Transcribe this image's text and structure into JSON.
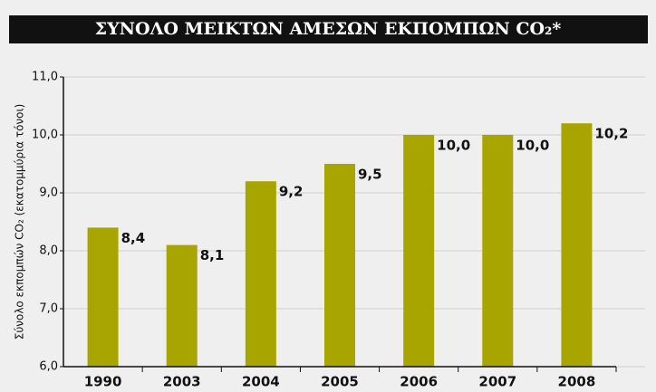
{
  "chart_data": {
    "type": "bar",
    "title": "ΣΥΝΟΛΟ ΜΕΙΚΤΩΝ ΑΜΕΣΩΝ ΕΚΠΟΜΠΩΝ CO₂*",
    "y_label": "Σύνολο εκπομπών CO₂ (εκατομμύρια τόνοι)",
    "categories": [
      "1990",
      "2003",
      "2004",
      "2005",
      "2006",
      "2007",
      "2008"
    ],
    "values": [
      8.4,
      8.1,
      9.2,
      9.5,
      10.0,
      10.0,
      10.2
    ],
    "value_labels": [
      "8,4",
      "8,1",
      "9,2",
      "9,5",
      "10,0",
      "10,0",
      "10,2"
    ],
    "color": "#a9a500",
    "ylim": [
      6,
      11
    ],
    "yticks": [
      {
        "value": 6,
        "label": "6,0"
      },
      {
        "value": 7,
        "label": "7,0"
      },
      {
        "value": 8,
        "label": "8,0"
      },
      {
        "value": 9,
        "label": "9,0"
      },
      {
        "value": 10,
        "label": "10,0"
      },
      {
        "value": 11,
        "label": "11,0"
      }
    ],
    "grid": true
  }
}
